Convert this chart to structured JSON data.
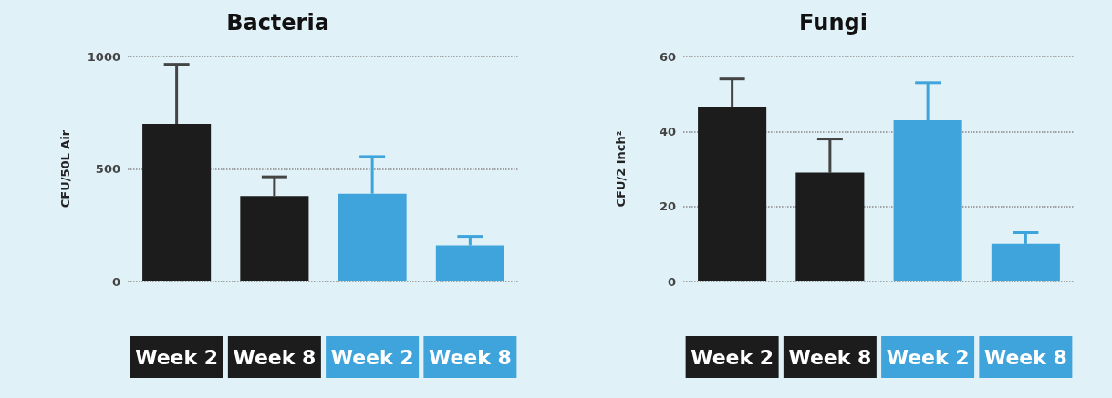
{
  "chart_data": [
    {
      "type": "bar",
      "title": "Bacteria",
      "ylabel": "CFU/50L Air",
      "categories": [
        "Week 2",
        "Week 8",
        "Week 2",
        "Week 8"
      ],
      "values": [
        700,
        380,
        390,
        160
      ],
      "colors": [
        "#1c1c1c",
        "#1c1c1c",
        "#3fa4dc",
        "#3fa4dc"
      ],
      "errors": [
        [
          700,
          965
        ],
        [
          380,
          465
        ],
        [
          390,
          555
        ],
        [
          160,
          200
        ]
      ],
      "ylim": [
        0,
        1000
      ],
      "yticks": [
        0,
        500,
        1000
      ],
      "grid": "y"
    },
    {
      "type": "bar",
      "title": "Fungi",
      "ylabel": "CFU/2 Inch²",
      "categories": [
        "Week 2",
        "Week 8",
        "Week 2",
        "Week 8"
      ],
      "values": [
        46.5,
        29,
        43,
        10
      ],
      "colors": [
        "#1c1c1c",
        "#1c1c1c",
        "#3fa4dc",
        "#3fa4dc"
      ],
      "errors": [
        [
          46.5,
          54
        ],
        [
          29,
          38
        ],
        [
          43,
          53
        ],
        [
          10,
          13
        ]
      ],
      "ylim": [
        0,
        60
      ],
      "yticks": [
        0,
        20,
        40,
        60
      ],
      "grid": "y"
    }
  ]
}
